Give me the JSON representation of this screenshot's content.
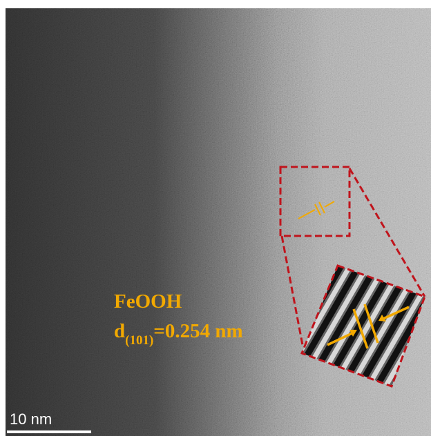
{
  "label": {
    "material": "FeOOH",
    "d_prefix": "d",
    "plane": "(101)",
    "spacing": "=0.254 nm"
  },
  "scale_bar": {
    "label": "10 nm"
  }
}
